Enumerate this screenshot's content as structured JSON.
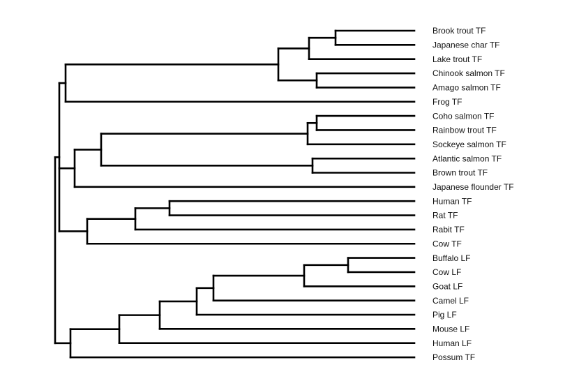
{
  "dendrogram": {
    "leaves": [
      "Brook trout TF",
      "Japanese char TF",
      "Lake trout TF",
      "Chinook salmon TF",
      "Amago salmon TF",
      "Frog TF",
      "Coho salmon TF",
      "Rainbow trout TF",
      "Sockeye salmon TF",
      "Atlantic salmon TF",
      "Brown trout TF",
      "Japanese flounder TF",
      "Human TF",
      "Rat TF",
      "Rabit TF",
      "Cow TF",
      "Buffalo LF",
      "Cow LF",
      "Goat LF",
      "Camel LF",
      "Pig LF",
      "Mouse LF",
      "Human LF",
      "Possum TF"
    ],
    "line_color": "#000000"
  }
}
